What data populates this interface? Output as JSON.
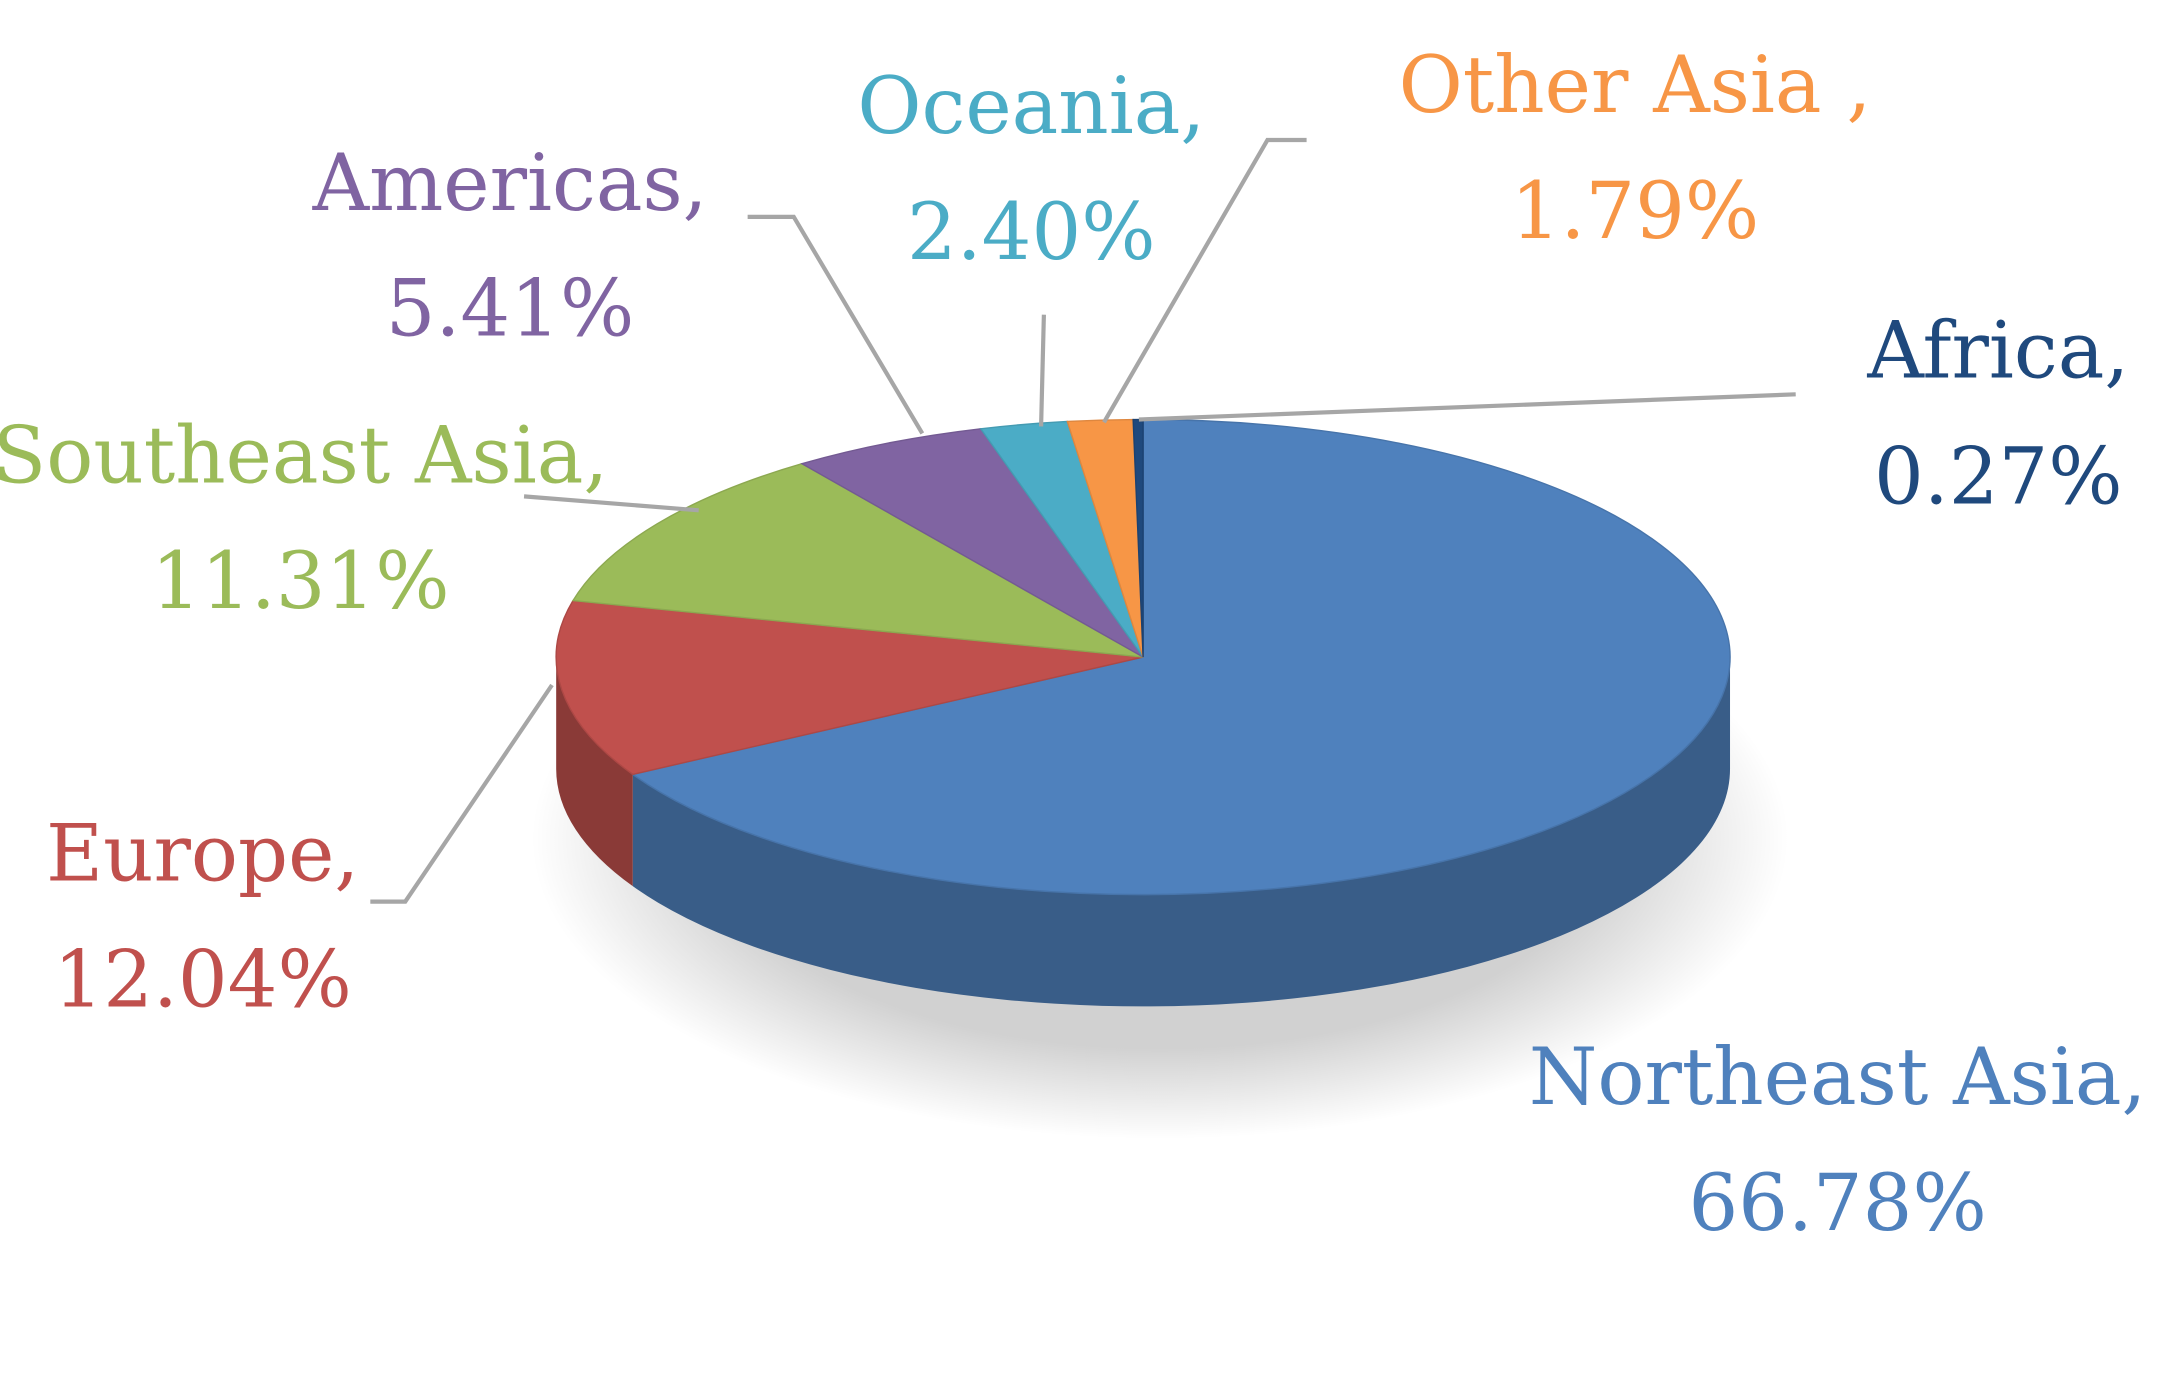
{
  "chart_data": {
    "type": "pie",
    "categories": [
      "Northeast Asia,",
      "Europe,",
      "Southeast Asia,",
      "Americas,",
      "Oceania,",
      "Other Asia ,",
      "Africa,"
    ],
    "values": [
      66.78,
      12.04,
      11.31,
      5.41,
      2.4,
      1.79,
      0.27
    ],
    "value_labels": [
      "66.78%",
      "12.04%",
      "11.31%",
      "5.41%",
      "2.40%",
      "1.79%",
      "0.27%"
    ],
    "colors": [
      "#4f81bd",
      "#c0504d",
      "#9bbb59",
      "#8064a2",
      "#4bacc6",
      "#f79646",
      "#1f497d"
    ]
  }
}
